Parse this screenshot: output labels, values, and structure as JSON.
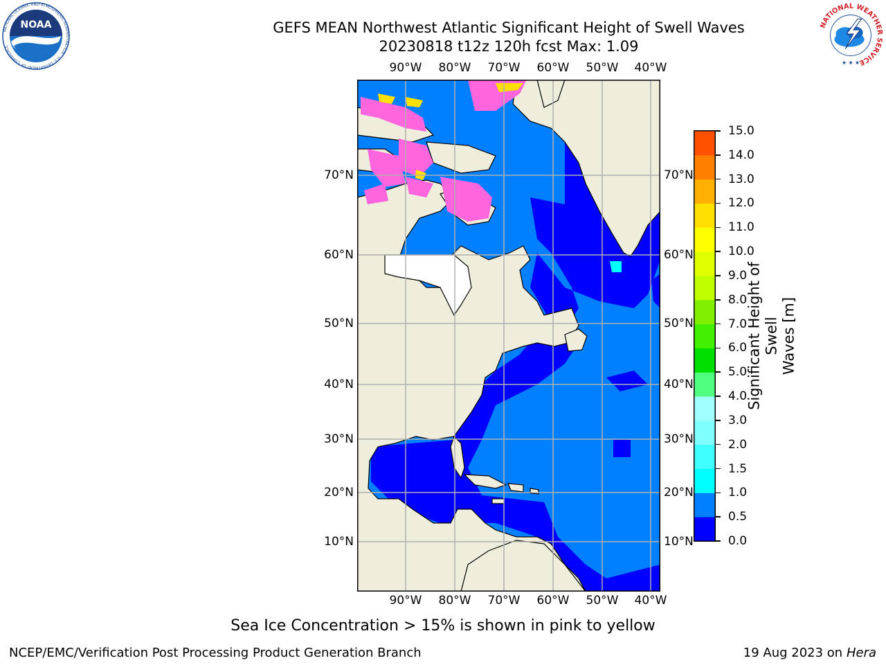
{
  "title_line1": "GEFS MEAN Northwest Atlantic Significant Height of Swell Waves",
  "title_line2": "20230818 t12z 120h fcst   Max: 1.09",
  "logos": {
    "left": {
      "name": "noaa-logo",
      "text": "NOAA",
      "ring_text": "NATIONAL OCEANIC AND ATMOSPHERIC ADMINISTRATION · U.S. DEPARTMENT OF COMMERCE",
      "color": "#1a4f9c"
    },
    "right": {
      "name": "nws-logo",
      "ring_text": "NATIONAL WEATHER SERVICE",
      "color": "#d42027"
    }
  },
  "map": {
    "lon_ticks": [
      "90°W",
      "80°W",
      "70°W",
      "60°W",
      "50°W",
      "40°W"
    ],
    "lat_ticks": [
      "70°N",
      "60°N",
      "50°N",
      "40°N",
      "30°N",
      "20°N",
      "10°N"
    ],
    "colors": {
      "land": "#efeddc",
      "ocean_low": "#0000ff",
      "ocean_mid": "#0080ff",
      "ocean_cyan": "#00ffff",
      "masked": "#ffffff",
      "ice_pink": "#ff66dd",
      "ice_yellow": "#ffe000",
      "grid": "#b0b0b0"
    }
  },
  "colorbar": {
    "title_line1": "Significant Height of Swell",
    "title_line2": "Waves [m]",
    "ticks": [
      "0.0",
      "0.5",
      "1.0",
      "1.5",
      "2.0",
      "3.0",
      "4.0",
      "5.0",
      "6.0",
      "7.0",
      "8.0",
      "9.0",
      "10.0",
      "11.0",
      "12.0",
      "13.0",
      "14.0",
      "15.0"
    ],
    "colors": [
      "#0000ff",
      "#0080ff",
      "#00ffff",
      "#40ffff",
      "#80ffff",
      "#a0ffff",
      "#50ff80",
      "#00e000",
      "#40f000",
      "#80f000",
      "#c0ff00",
      "#e0ff00",
      "#ffff00",
      "#ffe000",
      "#ffb000",
      "#ff8000",
      "#ff5000",
      "#ff2000",
      "#ff0000"
    ]
  },
  "ice_note": "Sea Ice Concentration > 15% is shown in pink to yellow",
  "footer_left": "NCEP/EMC/Verification Post Processing Product Generation Branch",
  "footer_right_date": "19 Aug 2023 on",
  "footer_right_host": "Hera"
}
